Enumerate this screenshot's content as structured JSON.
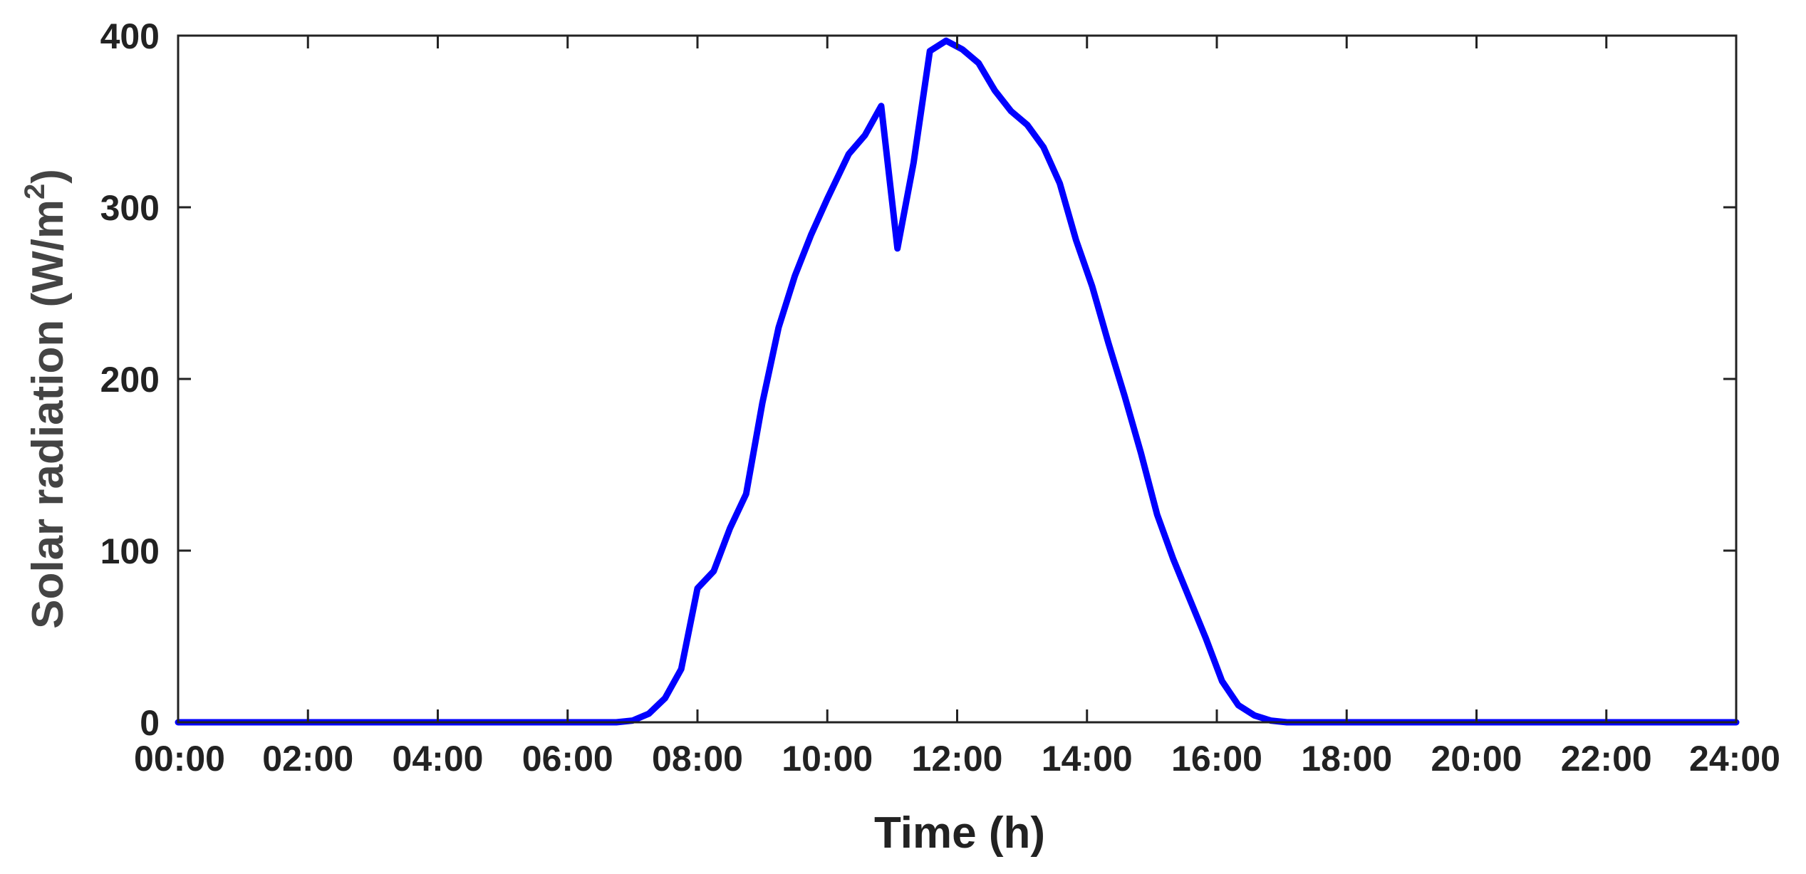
{
  "chart_data": {
    "type": "line",
    "title": "",
    "xlabel": "Time (h)",
    "ylabel": {
      "main": "Solar radiation (W/m",
      "superscript": "2",
      "suffix": ")"
    },
    "xlim": [
      0,
      24
    ],
    "ylim": [
      0,
      400
    ],
    "x_ticks": [
      0,
      2,
      4,
      6,
      8,
      10,
      12,
      14,
      16,
      18,
      20,
      22,
      24
    ],
    "x_tick_labels": [
      "00:00",
      "02:00",
      "04:00",
      "06:00",
      "08:00",
      "10:00",
      "12:00",
      "14:00",
      "16:00",
      "18:00",
      "20:00",
      "22:00",
      "24:00"
    ],
    "y_ticks": [
      0,
      100,
      200,
      300,
      400
    ],
    "y_tick_labels": [
      "0",
      "100",
      "200",
      "300",
      "400"
    ],
    "grid": false,
    "line_color": "#0000ff",
    "series": [
      {
        "x": [
          0,
          6.75,
          7.0,
          7.25,
          7.5,
          7.75,
          8.0,
          8.25,
          8.5,
          8.75,
          9.0,
          9.25,
          9.5,
          9.75,
          10.0,
          10.33,
          10.58,
          10.83,
          11.08,
          11.33,
          11.58,
          11.83,
          12.08,
          12.33,
          12.58,
          12.83,
          13.08,
          13.33,
          13.58,
          13.83,
          14.08,
          14.33,
          14.58,
          14.83,
          15.08,
          15.33,
          15.58,
          15.83,
          16.08,
          16.33,
          16.58,
          16.83,
          17.08,
          17.5,
          24
        ],
        "y": [
          0,
          0,
          1,
          5,
          14,
          31,
          78,
          88,
          113,
          133,
          186,
          230,
          260,
          284,
          305,
          331,
          342,
          359,
          276,
          326,
          391,
          397,
          392,
          384,
          368,
          356,
          348,
          335,
          314,
          281,
          254,
          221,
          190,
          157,
          121,
          95,
          72,
          49,
          24,
          10,
          4,
          1,
          0,
          0,
          0
        ]
      }
    ]
  }
}
